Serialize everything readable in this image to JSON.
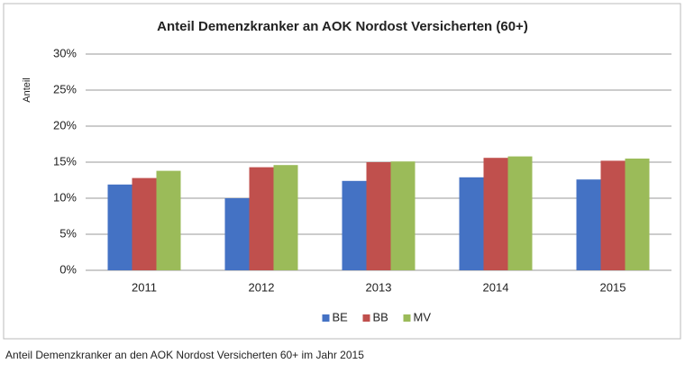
{
  "chart_data": {
    "type": "bar",
    "title": "Anteil Demenzkranker an AOK Nordost Versicherten (60+)",
    "y_label": "Anteil",
    "categories": [
      "2011",
      "2012",
      "2013",
      "2014",
      "2015"
    ],
    "series": [
      {
        "name": "BE",
        "color": "#4472c4",
        "values": [
          11.9,
          10,
          12.4,
          12.9,
          12.6
        ]
      },
      {
        "name": "BB",
        "color": "#c0504d",
        "values": [
          12.8,
          14.3,
          15,
          15.6,
          15.2
        ]
      },
      {
        "name": "MV",
        "color": "#9bbb59",
        "values": [
          13.8,
          14.6,
          15.1,
          15.8,
          15.5
        ]
      }
    ],
    "ylim": [
      0,
      30
    ],
    "yticks": [
      {
        "value": 0,
        "label": "0%"
      },
      {
        "value": 5,
        "label": "5%"
      },
      {
        "value": 10,
        "label": "10%"
      },
      {
        "value": 15,
        "label": "15%"
      },
      {
        "value": 20,
        "label": "20%"
      },
      {
        "value": 25,
        "label": "25%"
      },
      {
        "value": 30,
        "label": "30%"
      }
    ],
    "grid": true,
    "legend": "bottom"
  },
  "caption": "Anteil Demenzkranker an den AOK Nordost Versicherten 60+ im Jahr 2015"
}
